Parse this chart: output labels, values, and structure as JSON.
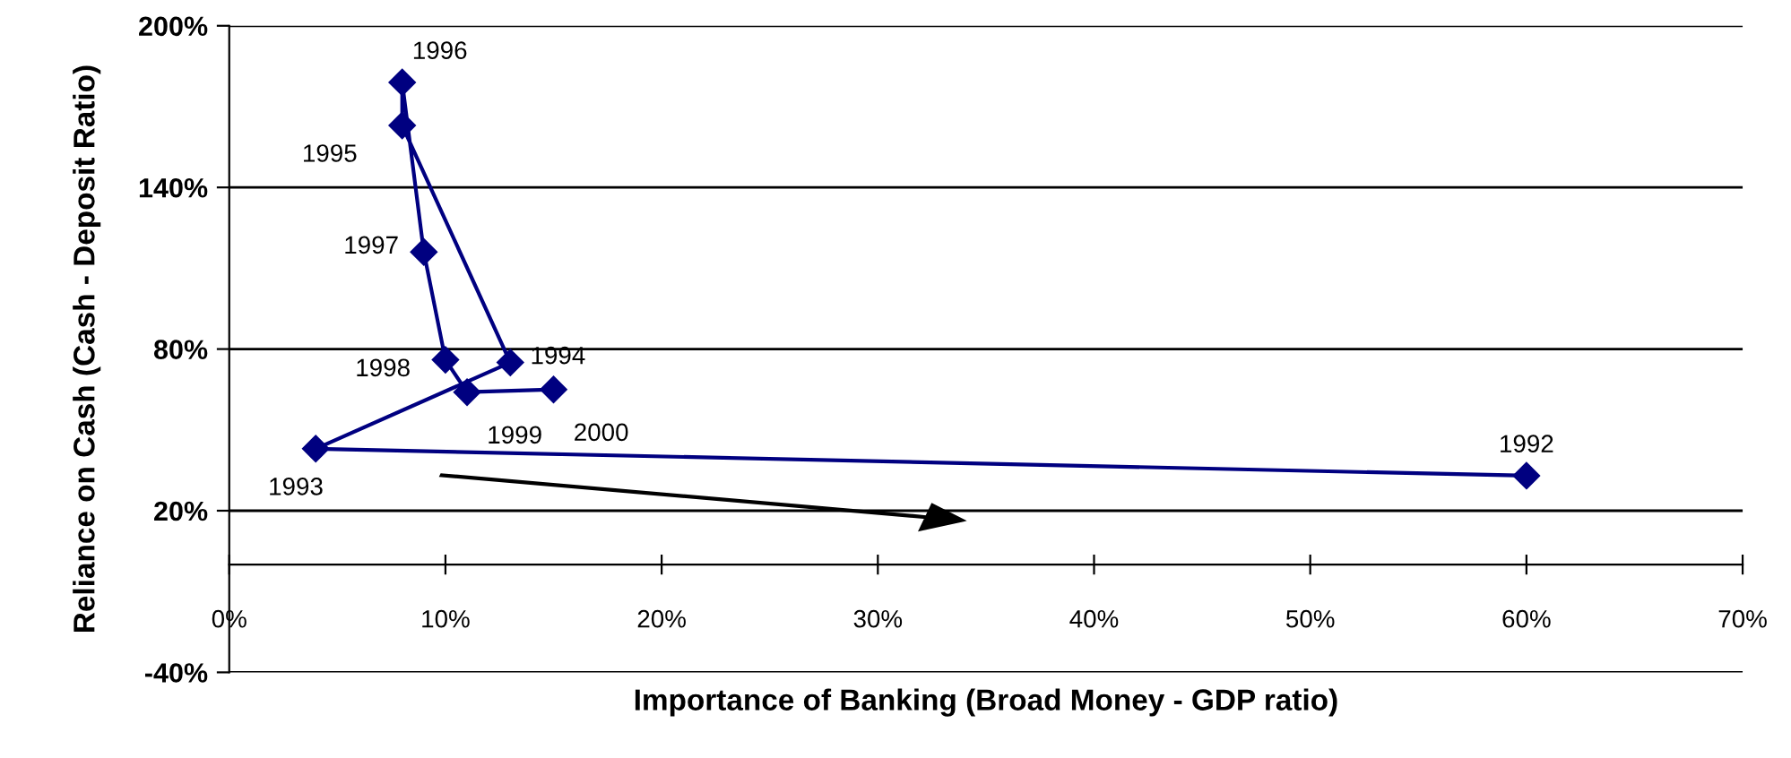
{
  "chart_data": {
    "type": "line",
    "xlabel": "Importance of Banking (Broad Money - GDP ratio)",
    "ylabel": "Reliance on Cash (Cash - Deposit Ratio)",
    "series": [
      {
        "color": "#000080",
        "x": [
          60,
          4,
          13,
          8,
          8,
          9,
          10,
          11,
          15
        ],
        "values": [
          33,
          43,
          75,
          163,
          179,
          116,
          76,
          64,
          65
        ]
      }
    ],
    "annotations": [
      {
        "text": "1992",
        "x": 60,
        "y": 33
      },
      {
        "text": "1993",
        "x": 4,
        "y": 43
      },
      {
        "text": "1994",
        "x": 13,
        "y": 75
      },
      {
        "text": "1995",
        "x": 8,
        "y": 163
      },
      {
        "text": "1996",
        "x": 8,
        "y": 179
      },
      {
        "text": "1997",
        "x": 9,
        "y": 116
      },
      {
        "text": "1998",
        "x": 10,
        "y": 76
      },
      {
        "text": "1999",
        "x": 11,
        "y": 64
      },
      {
        "text": "2000",
        "x": 15,
        "y": 65
      }
    ],
    "marker": "diamond",
    "line_style": "solid",
    "grid": "y",
    "legend": false,
    "xlim": [
      0,
      70
    ],
    "xticks": [
      {
        "value": 0,
        "label": "0%"
      },
      {
        "value": 10,
        "label": "10%"
      },
      {
        "value": 20,
        "label": "20%"
      },
      {
        "value": 30,
        "label": "30%"
      },
      {
        "value": 40,
        "label": "40%"
      },
      {
        "value": 50,
        "label": "50%"
      },
      {
        "value": 60,
        "label": "60%"
      },
      {
        "value": 70,
        "label": "70%"
      }
    ],
    "ylim": [
      -40,
      200
    ],
    "yticks": [
      {
        "value": -40,
        "label": "-40%"
      },
      {
        "value": 20,
        "label": "20%"
      },
      {
        "value": 80,
        "label": "80%"
      },
      {
        "value": 140,
        "label": "140%"
      },
      {
        "value": 200,
        "label": "200%"
      }
    ]
  }
}
